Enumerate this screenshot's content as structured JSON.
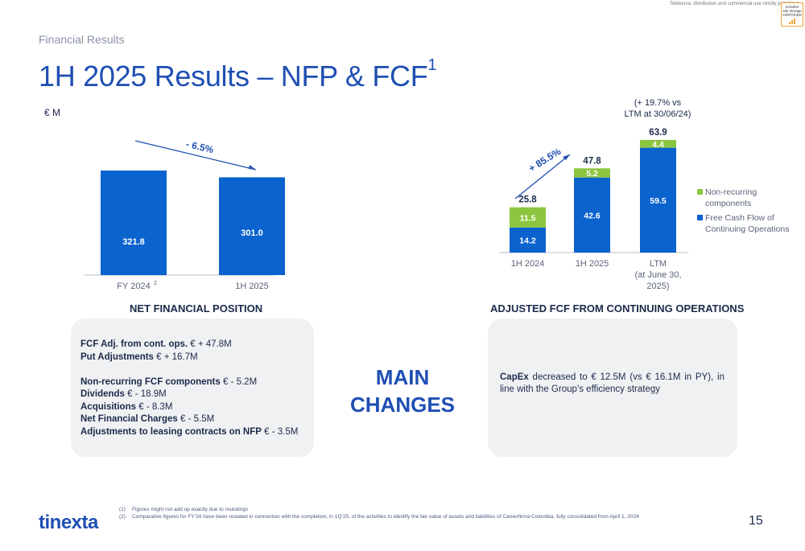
{
  "header": {
    "notice": "Teleborsa: distribution and commercial use strictly prohibited",
    "badge_line1": "emarket",
    "badge_line2": "sdir storage",
    "badge_line3": "CERTIFIED",
    "section_label": "Financial Results",
    "title": "1H 2025 Results – NFP & FCF",
    "title_sup": "1",
    "unit": "€ M"
  },
  "colors": {
    "primary_blue": "#0b63ce",
    "non_recurring_green": "#8cc63f",
    "title_blue": "#1f4fb3"
  },
  "chart_data": [
    {
      "type": "bar",
      "categories": [
        "FY 2024",
        "1H 2025"
      ],
      "category_sup": [
        "2",
        ""
      ],
      "values": [
        321.8,
        301.0
      ],
      "value_labels": [
        "321.8",
        "301.0"
      ],
      "annotation": "- 6.5%",
      "title": "NET FINANCIAL POSITION",
      "ylim": [
        0,
        400
      ]
    },
    {
      "type": "bar",
      "stacked": true,
      "categories": [
        "1H 2024",
        "1H 2025",
        "LTM"
      ],
      "category_sublabels": [
        "",
        "",
        "(at June 30,|2025)"
      ],
      "series": [
        {
          "name": "Free Cash Flow of Continuing Operations",
          "values": [
            14.2,
            42.6,
            59.5
          ],
          "color": "#0b63ce"
        },
        {
          "name": "Non-recurring components",
          "values": [
            11.5,
            5.2,
            4.4
          ],
          "color": "#8cc63f"
        }
      ],
      "segment_labels": [
        [
          "14.2",
          "42.6",
          "59.5"
        ],
        [
          "11.5",
          "5.2",
          "4.4"
        ]
      ],
      "totals": [
        25.8,
        47.8,
        63.9
      ],
      "total_labels": [
        "25.8",
        "47.8",
        "63.9"
      ],
      "annotation": "+ 85.5%",
      "ltm_note_line1": "(+ 19.7% vs",
      "ltm_note_line2": "LTM at 30/06/24)",
      "legend": [
        "Non-recurring|components",
        "Free Cash Flow of|Continuing Operations"
      ],
      "legend_position": "right",
      "title": "ADJUSTED FCF FROM CONTINUING OPERATIONS",
      "ylim": [
        0,
        70
      ]
    }
  ],
  "left_card": [
    {
      "bold": "FCF Adj. from cont. ops.",
      "text": " € + 47.8M"
    },
    {
      "bold": "Put Adjustments",
      "text": " € + 16.7M"
    },
    {
      "bold": "",
      "text": ""
    },
    {
      "bold": "Non-recurring FCF components",
      "text": " € - 5.2M"
    },
    {
      "bold": "Dividends",
      "text": " € - 18.9M"
    },
    {
      "bold": "Acquisitions",
      "text": " € - 8.3M"
    },
    {
      "bold": "Net Financial Charges",
      "text": " € - 5.5M"
    },
    {
      "bold": "Adjustments to leasing contracts on NFP",
      "text": " € - 3.5M"
    }
  ],
  "center_label_line1": "MAIN",
  "center_label_line2": "CHANGES",
  "right_card": {
    "bold": "CapEx",
    "text": " decreased to € 12.5M (vs € 16.1M in PY), in line with the Group’s efficiency strategy"
  },
  "footnotes": [
    {
      "num": "(1)",
      "text": "Figures might not add up exactly due to roundings"
    },
    {
      "num": "(2)",
      "text": "Comparative figures for FY’24 have been restated in connection with the completion, in 1Q’25, of the activities to identify the fair value of assets and liabilities of Camerfirma Colombia, fully consolidated from April 1, 2024"
    }
  ],
  "logo": "tinexta",
  "page_number": "15"
}
